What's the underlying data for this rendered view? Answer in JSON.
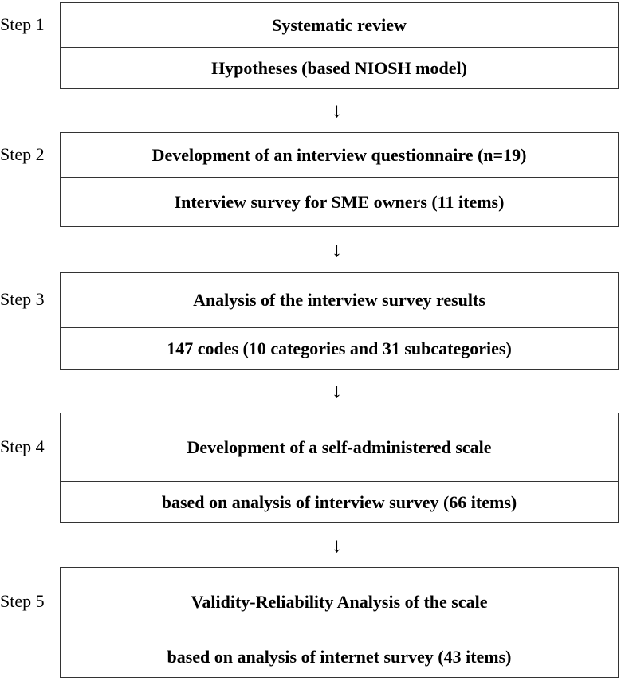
{
  "steps": [
    {
      "label": "Step 1",
      "top": "Systematic review",
      "bottom": "Hypotheses (based NIOSH model)"
    },
    {
      "label": "Step 2",
      "top": "Development of an interview questionnaire  (n=19)",
      "bottom": "Interview survey for SME owners (11 items)"
    },
    {
      "label": "Step 3",
      "top": "Analysis of the interview survey results",
      "bottom": "147 codes (10 categories and 31 subcategories)"
    },
    {
      "label": "Step 4",
      "top": "Development of a self-administered scale",
      "bottom": "based on analysis of interview survey (66 items)"
    },
    {
      "label": "Step 5",
      "top": "Validity-Reliability Analysis of the scale",
      "bottom": "based on analysis of internet survey (43 items)"
    }
  ],
  "arrow_glyph": "↓"
}
